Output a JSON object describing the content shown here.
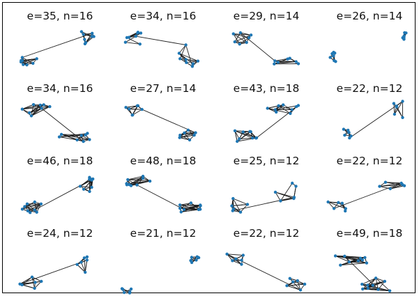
{
  "figure": {
    "subplots": [
      {
        "label": "e=35, n=16"
      },
      {
        "label": "e=34, n=16"
      },
      {
        "label": "e=29, n=14"
      },
      {
        "label": "e=26, n=14"
      },
      {
        "label": "e=34, n=16"
      },
      {
        "label": "e=27, n=14"
      },
      {
        "label": "e=43, n=18"
      },
      {
        "label": "e=22, n=12"
      },
      {
        "label": "e=46, n=18"
      },
      {
        "label": "e=48, n=18"
      },
      {
        "label": "e=25, n=12"
      },
      {
        "label": "e=22, n=12"
      },
      {
        "label": "e=24, n=12"
      },
      {
        "label": "e=21, n=12"
      },
      {
        "label": "e=22, n=12"
      },
      {
        "label": "e=49, n=18"
      }
    ],
    "colors": {
      "node": "#1f77b4",
      "edge": "#1f1f1f",
      "frame": "#000000"
    }
  }
}
